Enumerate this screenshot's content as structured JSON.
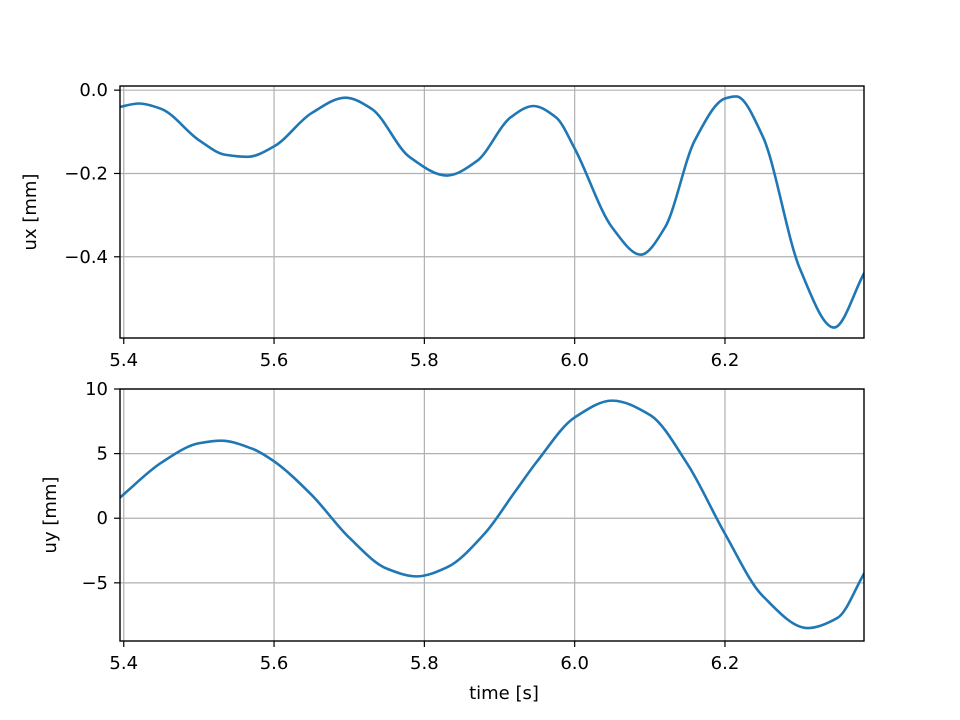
{
  "chart_data": [
    {
      "type": "line",
      "title": "",
      "xlabel": "",
      "ylabel": "ux [mm]",
      "xlim": [
        5.395,
        6.385
      ],
      "ylim": [
        -0.595,
        0.01
      ],
      "xticks": [
        5.4,
        5.6,
        5.8,
        6.0,
        6.2
      ],
      "xtick_labels": [
        "5.4",
        "5.6",
        "5.8",
        "6.0",
        "6.2"
      ],
      "yticks": [
        0.0,
        -0.2,
        -0.4
      ],
      "ytick_labels": [
        "0.0",
        "−0.2",
        "−0.4"
      ],
      "grid": true,
      "color": "#1f77b4",
      "x": [
        5.395,
        5.42,
        5.45,
        5.5,
        5.535,
        5.565,
        5.6,
        5.65,
        5.695,
        5.73,
        5.78,
        5.83,
        5.87,
        5.915,
        5.945,
        5.975,
        6.0,
        6.05,
        6.088,
        6.12,
        6.16,
        6.2,
        6.215,
        6.25,
        6.3,
        6.345,
        6.385
      ],
      "y": [
        -0.04,
        -0.032,
        -0.045,
        -0.12,
        -0.155,
        -0.16,
        -0.135,
        -0.055,
        -0.018,
        -0.045,
        -0.16,
        -0.205,
        -0.17,
        -0.065,
        -0.038,
        -0.065,
        -0.14,
        -0.33,
        -0.395,
        -0.33,
        -0.12,
        -0.02,
        -0.015,
        -0.11,
        -0.43,
        -0.57,
        -0.44
      ]
    },
    {
      "type": "line",
      "title": "",
      "xlabel": "time [s]",
      "ylabel": "uy [mm]",
      "xlim": [
        5.395,
        6.385
      ],
      "ylim": [
        -9.5,
        10
      ],
      "xticks": [
        5.4,
        5.6,
        5.8,
        6.0,
        6.2
      ],
      "xtick_labels": [
        "5.4",
        "5.6",
        "5.8",
        "6.0",
        "6.2"
      ],
      "yticks": [
        10,
        5,
        0,
        -5
      ],
      "ytick_labels": [
        "10",
        "5",
        "0",
        "−5"
      ],
      "grid": true,
      "color": "#1f77b4",
      "x": [
        5.395,
        5.45,
        5.5,
        5.53,
        5.57,
        5.6,
        5.65,
        5.7,
        5.75,
        5.79,
        5.83,
        5.88,
        5.92,
        5.95,
        6.0,
        6.05,
        6.1,
        6.15,
        6.2,
        6.25,
        6.31,
        6.35,
        6.385
      ],
      "y": [
        1.6,
        4.3,
        5.8,
        6.0,
        5.4,
        4.4,
        1.8,
        -1.5,
        -3.9,
        -4.5,
        -3.8,
        -1.2,
        2.0,
        4.4,
        7.8,
        9.1,
        8.0,
        4.2,
        -1.2,
        -6.0,
        -8.5,
        -7.7,
        -4.3
      ]
    }
  ]
}
